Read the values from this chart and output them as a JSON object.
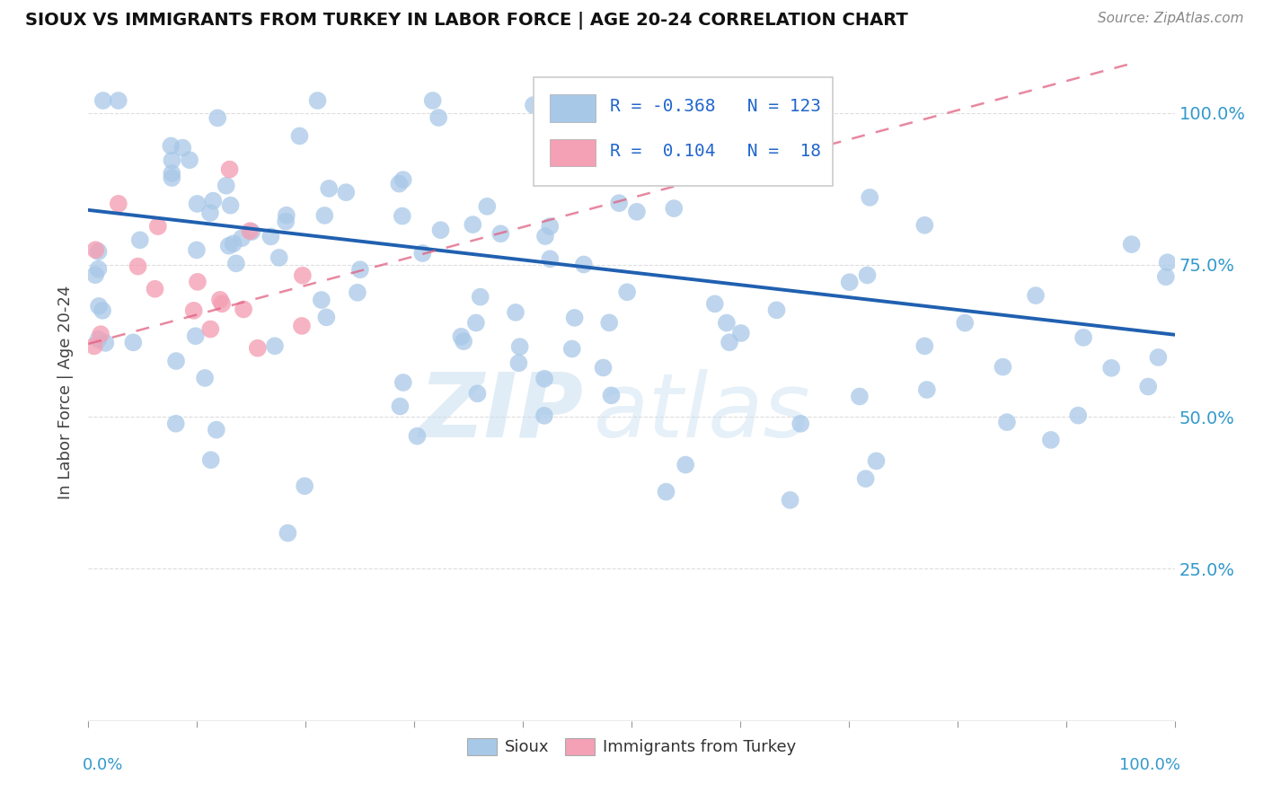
{
  "title": "SIOUX VS IMMIGRANTS FROM TURKEY IN LABOR FORCE | AGE 20-24 CORRELATION CHART",
  "source": "Source: ZipAtlas.com",
  "ylabel": "In Labor Force | Age 20-24",
  "ytick_labels": [
    "25.0%",
    "50.0%",
    "75.0%",
    "100.0%"
  ],
  "ytick_values": [
    0.25,
    0.5,
    0.75,
    1.0
  ],
  "blue_color": "#a8c8e8",
  "pink_color": "#f4a0b5",
  "trend_blue": "#2060b0",
  "trend_pink": "#e06080",
  "legend_R_blue": "-0.368",
  "legend_N_blue": "123",
  "legend_R_pink": "0.104",
  "legend_N_pink": "18",
  "xlim": [
    0.0,
    1.0
  ],
  "ylim": [
    0.0,
    1.08
  ],
  "background_color": "#ffffff",
  "grid_color": "#dddddd",
  "fig_width": 14.06,
  "fig_height": 8.92,
  "dpi": 100,
  "blue_trend_x0": 0.0,
  "blue_trend_y0": 0.84,
  "blue_trend_x1": 1.0,
  "blue_trend_y1": 0.635,
  "pink_trend_x0": 0.0,
  "pink_trend_y0": 0.62,
  "pink_trend_x1": 1.0,
  "pink_trend_y1": 1.1
}
